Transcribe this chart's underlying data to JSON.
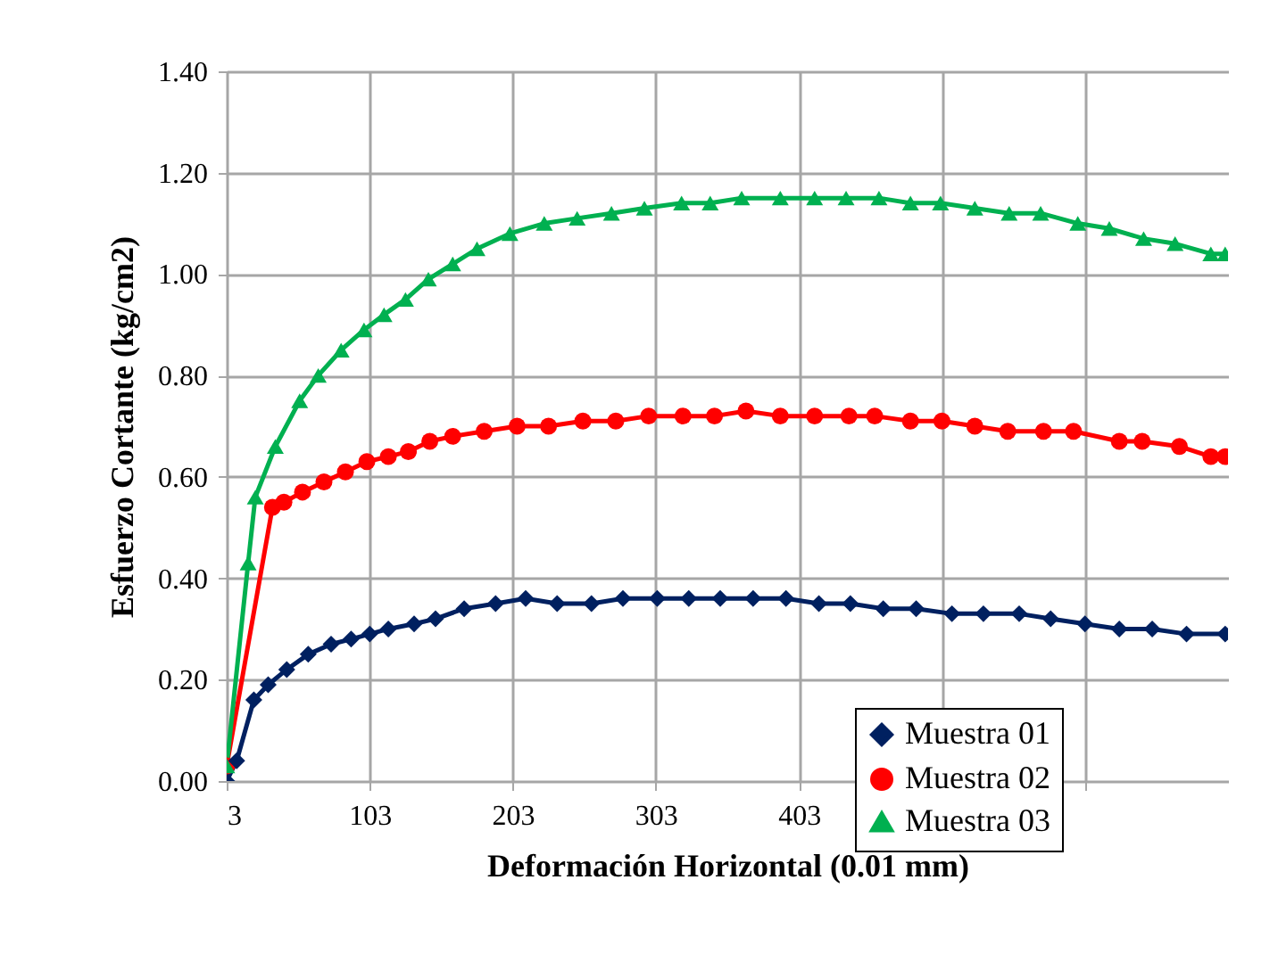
{
  "chart_data": {
    "type": "line",
    "xlabel": "Deformación Horizontal (0.01 mm)",
    "ylabel": "Esfuerzo Cortante (kg/cm2)",
    "xlim": [
      3,
      703
    ],
    "xticks": [
      3,
      103,
      203,
      303,
      403,
      {
        "value": 503,
        "label": null
      },
      {
        "value": 603,
        "label": null
      }
    ],
    "ylim": [
      0,
      1.4
    ],
    "yticks": [
      {
        "value": 0,
        "label": "0.00"
      },
      {
        "value": 0.2,
        "label": "0.20"
      },
      {
        "value": 0.4,
        "label": "0.40"
      },
      {
        "value": 0.6,
        "label": "0.60"
      },
      {
        "value": 0.8,
        "label": "0.80"
      },
      {
        "value": 1,
        "label": "1.00"
      },
      {
        "value": 1.2,
        "label": "1.20"
      },
      {
        "value": 1.4,
        "label": "1.40"
      }
    ],
    "grid": true,
    "legend": "bottom right",
    "series": [
      {
        "name": "Muestra 01",
        "color": "#002060",
        "marker": "diamond",
        "x": [
          3,
          10,
          22,
          32,
          45,
          60,
          76,
          90,
          103,
          116,
          134,
          149,
          169,
          191,
          212,
          234,
          258,
          280,
          304,
          326,
          348,
          371,
          394,
          417,
          439,
          462,
          485,
          510,
          532,
          557,
          579,
          603,
          627,
          650,
          674,
          701
        ],
        "values": [
          0,
          0.04,
          0.16,
          0.19,
          0.22,
          0.25,
          0.27,
          0.28,
          0.29,
          0.3,
          0.31,
          0.32,
          0.34,
          0.35,
          0.36,
          0.35,
          0.35,
          0.36,
          0.36,
          0.36,
          0.36,
          0.36,
          0.36,
          0.35,
          0.35,
          0.34,
          0.34,
          0.33,
          0.33,
          0.33,
          0.32,
          0.31,
          0.3,
          0.3,
          0.29,
          0.29
        ]
      },
      {
        "name": "Muestra 02",
        "color": "#ff0000",
        "marker": "circle",
        "x": [
          3,
          35,
          43,
          56,
          71,
          86,
          101,
          116,
          130,
          145,
          161,
          183,
          206,
          228,
          252,
          275,
          298,
          322,
          344,
          366,
          390,
          414,
          438,
          456,
          481,
          503,
          526,
          549,
          574,
          595,
          627,
          643,
          669,
          691,
          701
        ],
        "values": [
          0.03,
          0.54,
          0.55,
          0.57,
          0.59,
          0.61,
          0.63,
          0.64,
          0.65,
          0.67,
          0.68,
          0.69,
          0.7,
          0.7,
          0.71,
          0.71,
          0.72,
          0.72,
          0.72,
          0.73,
          0.72,
          0.72,
          0.72,
          0.72,
          0.71,
          0.71,
          0.7,
          0.69,
          0.69,
          0.69,
          0.67,
          0.67,
          0.66,
          0.64,
          0.64
        ]
      },
      {
        "name": "Muestra 03",
        "color": "#00b050",
        "marker": "triangle",
        "x": [
          3,
          18,
          23,
          37,
          54,
          67,
          83,
          99,
          113,
          128,
          144,
          161,
          178,
          201,
          225,
          248,
          272,
          295,
          321,
          341,
          363,
          390,
          414,
          436,
          459,
          481,
          502,
          526,
          550,
          572,
          598,
          620,
          644,
          666,
          691,
          701
        ],
        "values": [
          0.03,
          0.43,
          0.56,
          0.66,
          0.75,
          0.8,
          0.85,
          0.89,
          0.92,
          0.95,
          0.99,
          1.02,
          1.05,
          1.08,
          1.1,
          1.11,
          1.12,
          1.13,
          1.14,
          1.14,
          1.15,
          1.15,
          1.15,
          1.15,
          1.15,
          1.14,
          1.14,
          1.13,
          1.12,
          1.12,
          1.1,
          1.09,
          1.07,
          1.06,
          1.04,
          1.04
        ]
      }
    ]
  }
}
